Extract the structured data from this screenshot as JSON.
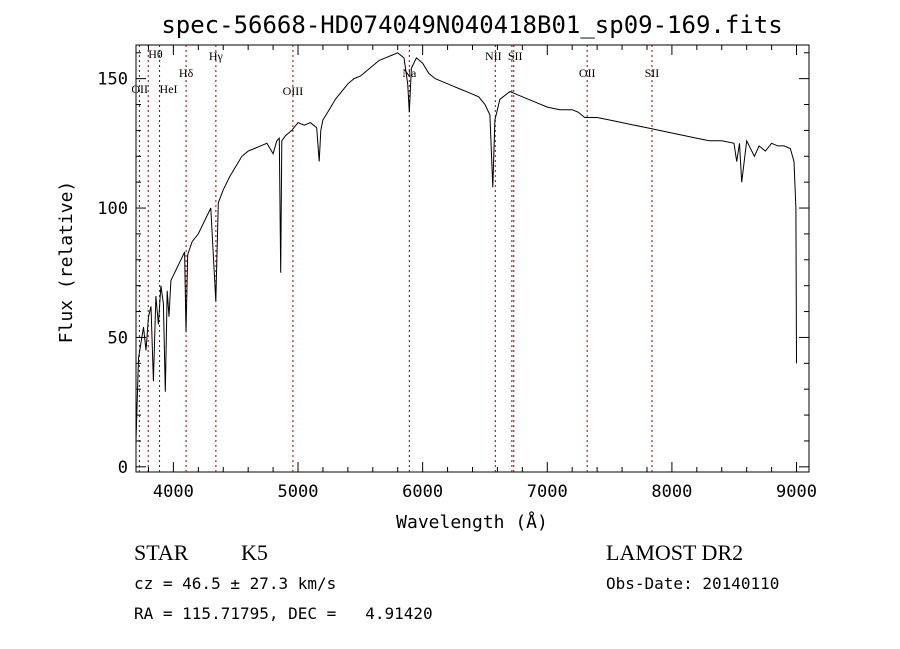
{
  "chart_data": {
    "type": "line",
    "title": "spec-56668-HD074049N040418B01_sp09-169.fits",
    "xlabel": "Wavelength (Å)",
    "ylabel": "Flux (relative)",
    "xlim": [
      3700,
      9100
    ],
    "ylim": [
      -2,
      163
    ],
    "x_ticks": [
      {
        "value": 4000,
        "label": "4000"
      },
      {
        "value": 5000,
        "label": "5000"
      },
      {
        "value": 6000,
        "label": "6000"
      },
      {
        "value": 7000,
        "label": "7000"
      },
      {
        "value": 8000,
        "label": "8000"
      },
      {
        "value": 9000,
        "label": "9000"
      }
    ],
    "y_ticks": [
      {
        "value": 0,
        "label": "0"
      },
      {
        "value": 50,
        "label": "50"
      },
      {
        "value": 100,
        "label": "100"
      },
      {
        "value": 150,
        "label": "150"
      }
    ],
    "grid": false,
    "legend": "none",
    "line_color": "#000000",
    "marker_color": "#8b0000",
    "spectrum": {
      "x": [
        3700,
        3720,
        3740,
        3760,
        3780,
        3800,
        3820,
        3840,
        3860,
        3880,
        3900,
        3920,
        3935,
        3950,
        3965,
        3980,
        4000,
        4030,
        4060,
        4090,
        4101,
        4115,
        4150,
        4200,
        4250,
        4300,
        4340,
        4360,
        4400,
        4450,
        4500,
        4550,
        4600,
        4650,
        4700,
        4750,
        4800,
        4830,
        4850,
        4861,
        4870,
        4900,
        4950,
        5000,
        5050,
        5100,
        5150,
        5170,
        5183,
        5200,
        5250,
        5300,
        5350,
        5400,
        5450,
        5500,
        5550,
        5600,
        5650,
        5700,
        5750,
        5800,
        5850,
        5880,
        5893,
        5910,
        5950,
        6000,
        6050,
        6100,
        6150,
        6200,
        6250,
        6300,
        6350,
        6400,
        6450,
        6500,
        6540,
        6563,
        6580,
        6620,
        6700,
        6800,
        6900,
        7000,
        7100,
        7200,
        7250,
        7300,
        7400,
        7500,
        7600,
        7700,
        7800,
        7900,
        8000,
        8100,
        8200,
        8300,
        8400,
        8498,
        8520,
        8542,
        8560,
        8600,
        8662,
        8700,
        8750,
        8800,
        8850,
        8900,
        8950,
        8980,
        8995,
        9000
      ],
      "y": [
        10,
        42,
        48,
        54,
        45,
        58,
        62,
        33,
        66,
        55,
        70,
        63,
        29,
        68,
        58,
        72,
        74,
        77,
        80,
        83,
        52,
        82,
        87,
        90,
        95,
        100,
        64,
        102,
        107,
        112,
        116,
        120,
        122,
        123,
        124,
        125,
        121,
        126,
        127,
        75,
        126,
        128,
        130,
        133,
        132,
        133,
        131,
        118,
        130,
        134,
        138,
        142,
        145,
        148,
        150,
        151,
        153,
        155,
        157,
        158,
        159,
        160,
        158,
        148,
        137,
        154,
        158,
        156,
        152,
        150,
        149,
        148,
        147,
        146,
        145,
        144,
        143,
        140,
        136,
        108,
        134,
        142,
        145,
        143,
        141,
        139,
        138,
        138,
        137,
        135,
        135,
        134,
        133,
        132,
        131,
        130,
        129,
        128,
        127,
        126,
        126,
        125,
        118,
        125,
        110,
        126,
        120,
        124,
        122,
        125,
        124,
        124,
        123,
        118,
        100,
        40
      ]
    },
    "line_markers": [
      {
        "label": "Hθ",
        "x": 3798
      },
      {
        "label": "OII",
        "x": 3727
      },
      {
        "label": "HeI",
        "x": 3889
      },
      {
        "label": "Hδ",
        "x": 4102
      },
      {
        "label": "Hγ",
        "x": 4341
      },
      {
        "label": "OIII",
        "x": 4959
      },
      {
        "label": "Na",
        "x": 5893
      },
      {
        "label": "NII",
        "x": 6583
      },
      {
        "label": "SII",
        "x": 6716
      },
      {
        "label": "",
        "x": 6731
      },
      {
        "label": "OII",
        "x": 7320
      },
      {
        "label": "SII",
        "x": 7840
      }
    ],
    "annotations": {
      "object_class": "STAR",
      "subclass": "K5",
      "survey": "LAMOST DR2",
      "redshift": "cz = 46.5 ± 27.3 km/s",
      "obs_date": "Obs-Date: 20140110",
      "coords": "RA = 115.71795, DEC =   4.91420"
    }
  }
}
